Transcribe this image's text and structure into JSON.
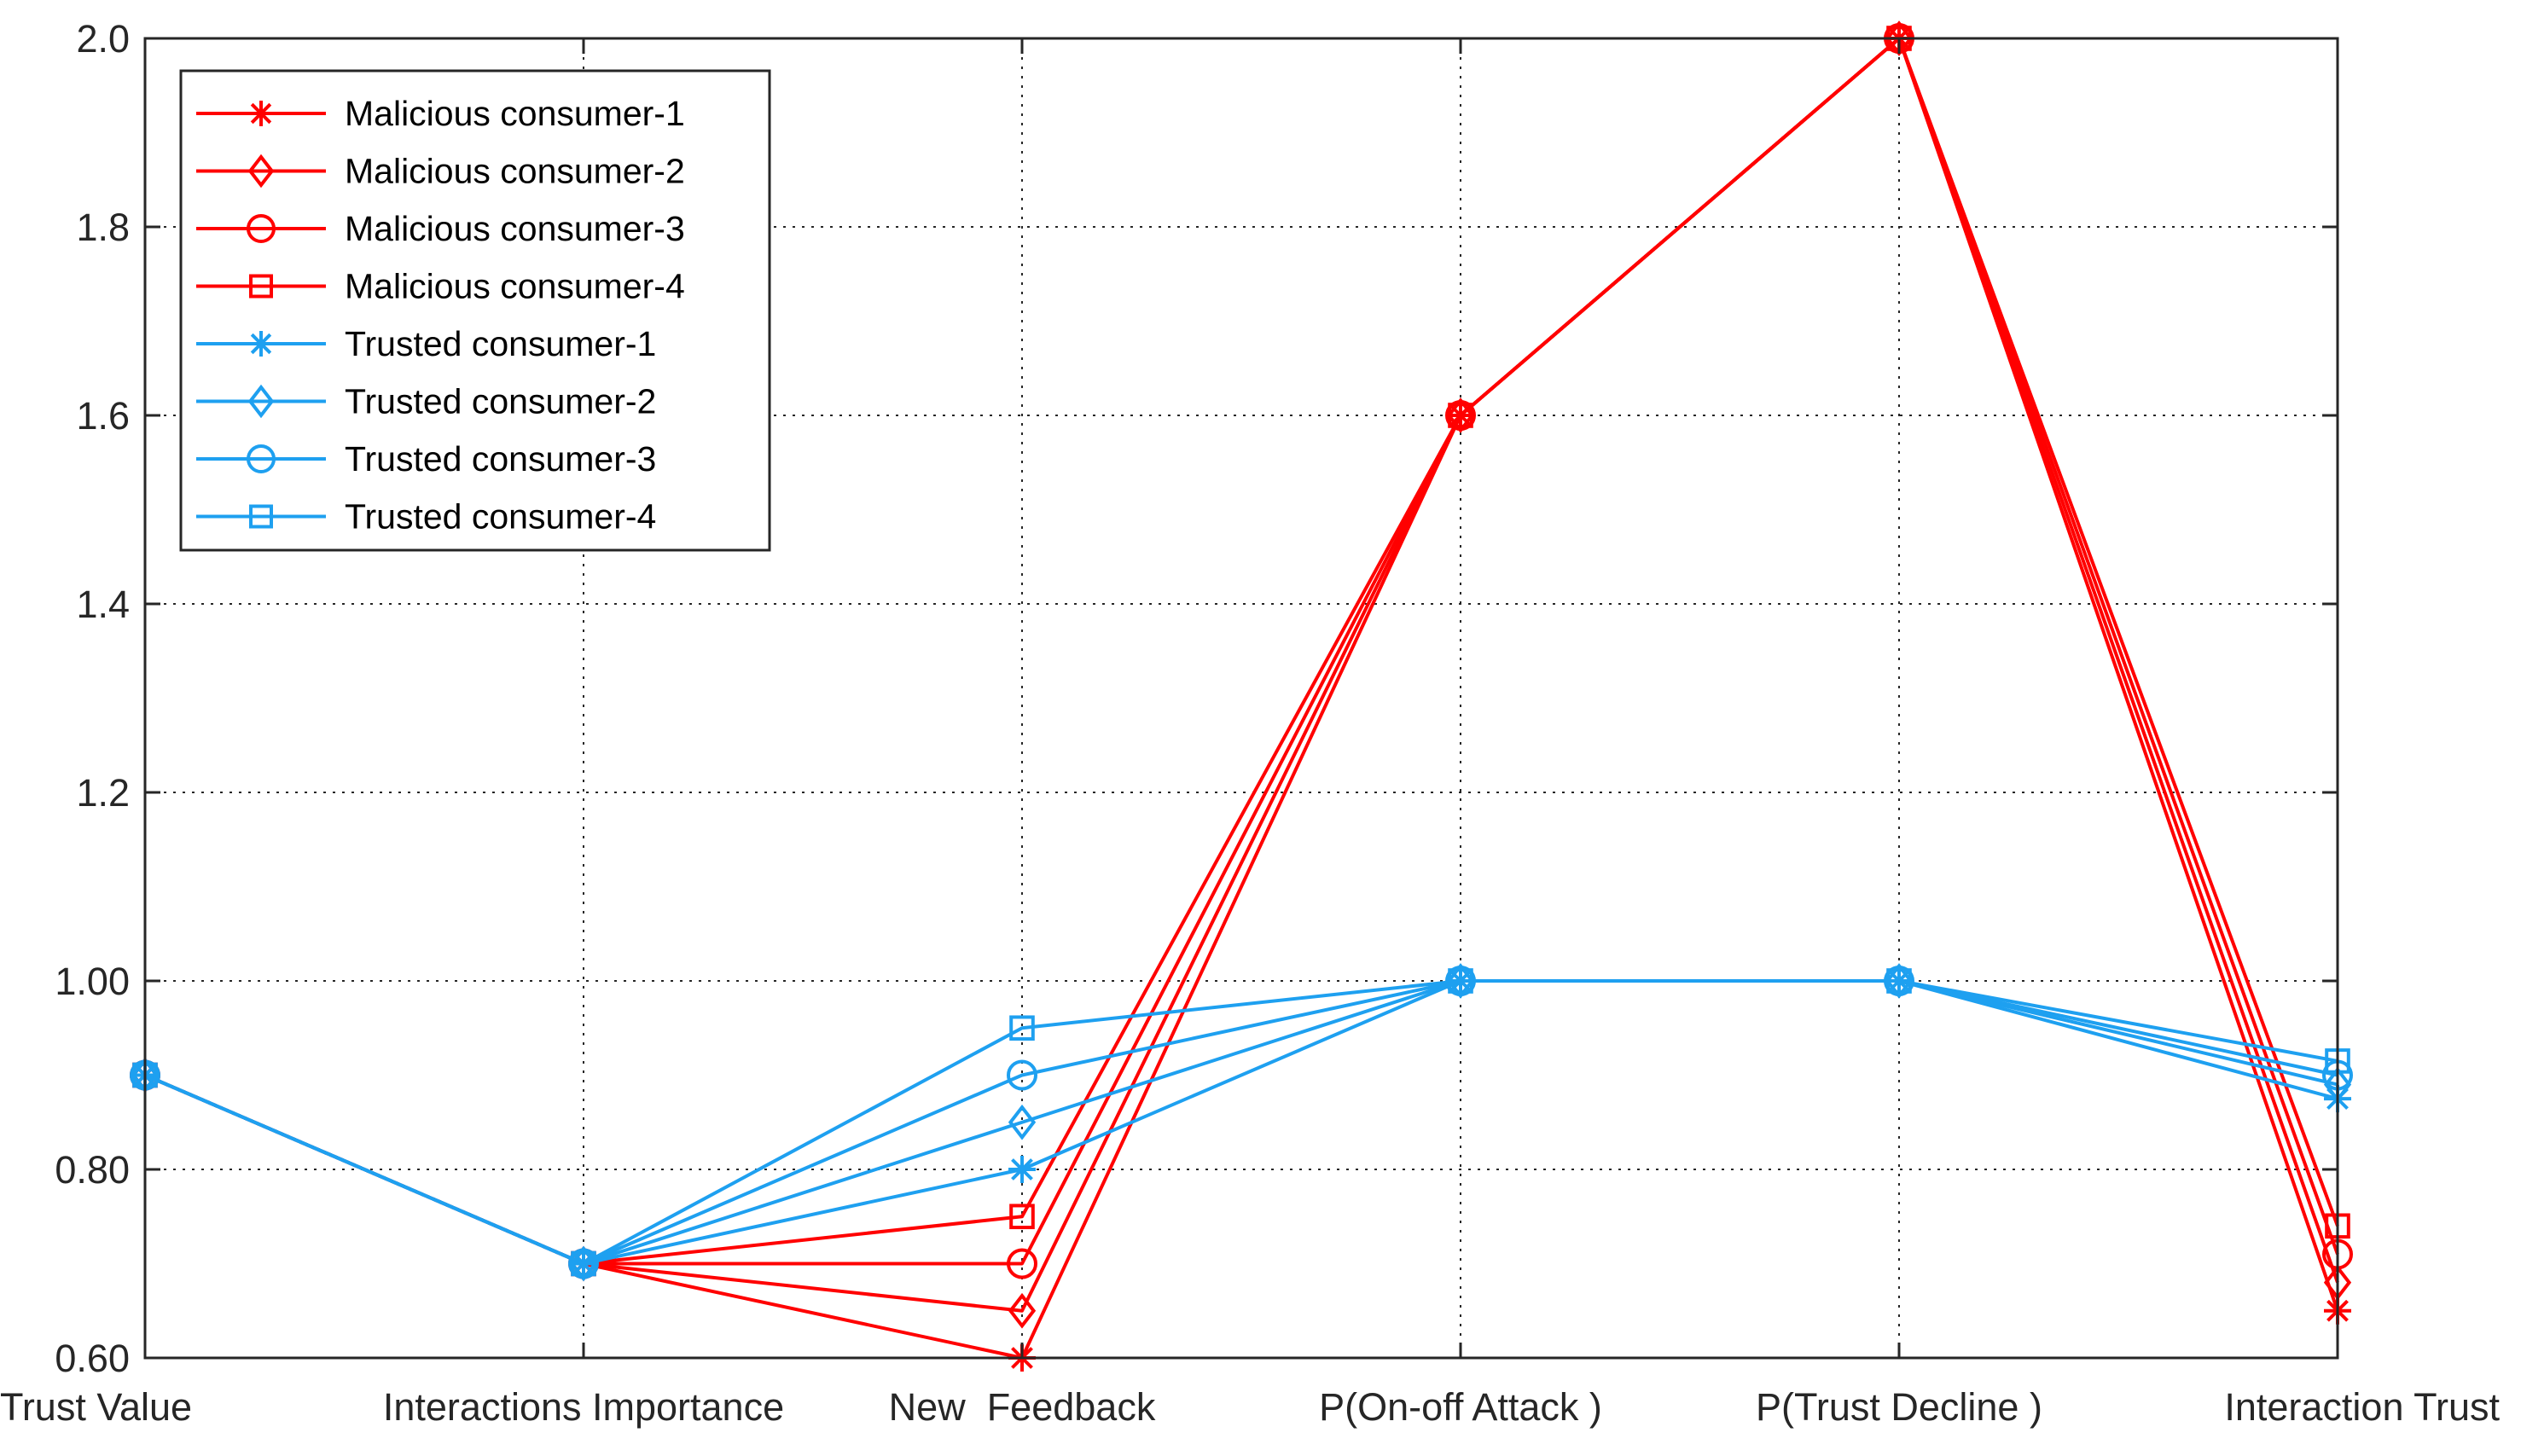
{
  "chart_data": {
    "type": "line",
    "title": "",
    "xlabel": "",
    "ylabel": "",
    "categories": [
      "Trust Value",
      "Interactions Importance",
      "New  Feedback",
      "P(On-off Attack )",
      "P(Trust Decline )",
      "Interaction Trust"
    ],
    "ylim": [
      0.6,
      2.0
    ],
    "yticks": [
      "0.60",
      "0.80",
      "1.00",
      "1.2",
      "1.4",
      "1.6",
      "1.8",
      "2.0"
    ],
    "grid": true,
    "legend_position": "top-left",
    "colors": {
      "malicious": "#ff0000",
      "trusted": "#1ea0f0",
      "axis": "#262626",
      "grid": "#262626"
    },
    "series": [
      {
        "name": "Malicious consumer-1",
        "marker": "asterisk",
        "color": "#ff0000",
        "values": [
          0.9,
          0.7,
          0.6,
          1.6,
          2.0,
          0.65
        ]
      },
      {
        "name": "Malicious consumer-2",
        "marker": "diamond",
        "color": "#ff0000",
        "values": [
          0.9,
          0.7,
          0.65,
          1.6,
          2.0,
          0.68
        ]
      },
      {
        "name": "Malicious consumer-3",
        "marker": "circle",
        "color": "#ff0000",
        "values": [
          0.9,
          0.7,
          0.7,
          1.6,
          2.0,
          0.71
        ]
      },
      {
        "name": "Malicious consumer-4",
        "marker": "square",
        "color": "#ff0000",
        "values": [
          0.9,
          0.7,
          0.75,
          1.6,
          2.0,
          0.74
        ]
      },
      {
        "name": "Trusted consumer-1",
        "marker": "asterisk",
        "color": "#1ea0f0",
        "values": [
          0.9,
          0.7,
          0.8,
          1.0,
          1.0,
          0.875
        ]
      },
      {
        "name": "Trusted consumer-2",
        "marker": "diamond",
        "color": "#1ea0f0",
        "values": [
          0.9,
          0.7,
          0.85,
          1.0,
          1.0,
          0.89
        ]
      },
      {
        "name": "Trusted consumer-3",
        "marker": "circle",
        "color": "#1ea0f0",
        "values": [
          0.9,
          0.7,
          0.9,
          1.0,
          1.0,
          0.9
        ]
      },
      {
        "name": "Trusted consumer-4",
        "marker": "square",
        "color": "#1ea0f0",
        "values": [
          0.9,
          0.7,
          0.95,
          1.0,
          1.0,
          0.915
        ]
      }
    ]
  }
}
